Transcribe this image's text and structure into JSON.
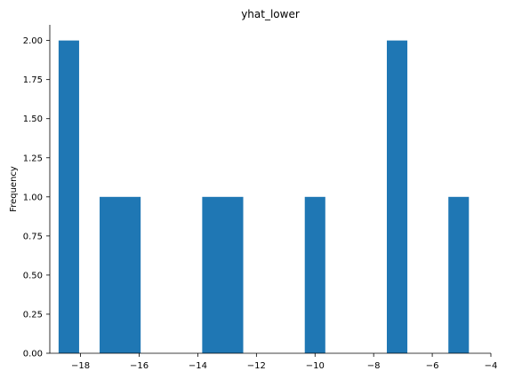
{
  "chart_data": {
    "type": "bar",
    "title": "yhat_lower",
    "xlabel": "",
    "ylabel": "Frequency",
    "xlim": [
      -19.05,
      -4.0
    ],
    "ylim": [
      0,
      2.1
    ],
    "grid": false,
    "bar_color": "#1f77b4",
    "bins": [
      {
        "x0": -18.75,
        "x1": -18.05,
        "count": 2
      },
      {
        "x0": -17.35,
        "x1": -15.95,
        "count": 1
      },
      {
        "x0": -13.85,
        "x1": -12.45,
        "count": 1
      },
      {
        "x0": -10.35,
        "x1": -9.65,
        "count": 1
      },
      {
        "x0": -7.55,
        "x1": -6.85,
        "count": 2
      },
      {
        "x0": -5.45,
        "x1": -4.75,
        "count": 1
      }
    ],
    "x_ticks": [
      {
        "value": -18,
        "label": "−18"
      },
      {
        "value": -16,
        "label": "−16"
      },
      {
        "value": -14,
        "label": "−14"
      },
      {
        "value": -12,
        "label": "−12"
      },
      {
        "value": -10,
        "label": "−10"
      },
      {
        "value": -8,
        "label": "−8"
      },
      {
        "value": -6,
        "label": "−6"
      },
      {
        "value": -4,
        "label": "−4"
      }
    ],
    "y_ticks": [
      {
        "value": 0.0,
        "label": "0.00"
      },
      {
        "value": 0.25,
        "label": "0.25"
      },
      {
        "value": 0.5,
        "label": "0.50"
      },
      {
        "value": 0.75,
        "label": "0.75"
      },
      {
        "value": 1.0,
        "label": "1.00"
      },
      {
        "value": 1.25,
        "label": "1.25"
      },
      {
        "value": 1.5,
        "label": "1.50"
      },
      {
        "value": 1.75,
        "label": "1.75"
      },
      {
        "value": 2.0,
        "label": "2.00"
      }
    ]
  }
}
